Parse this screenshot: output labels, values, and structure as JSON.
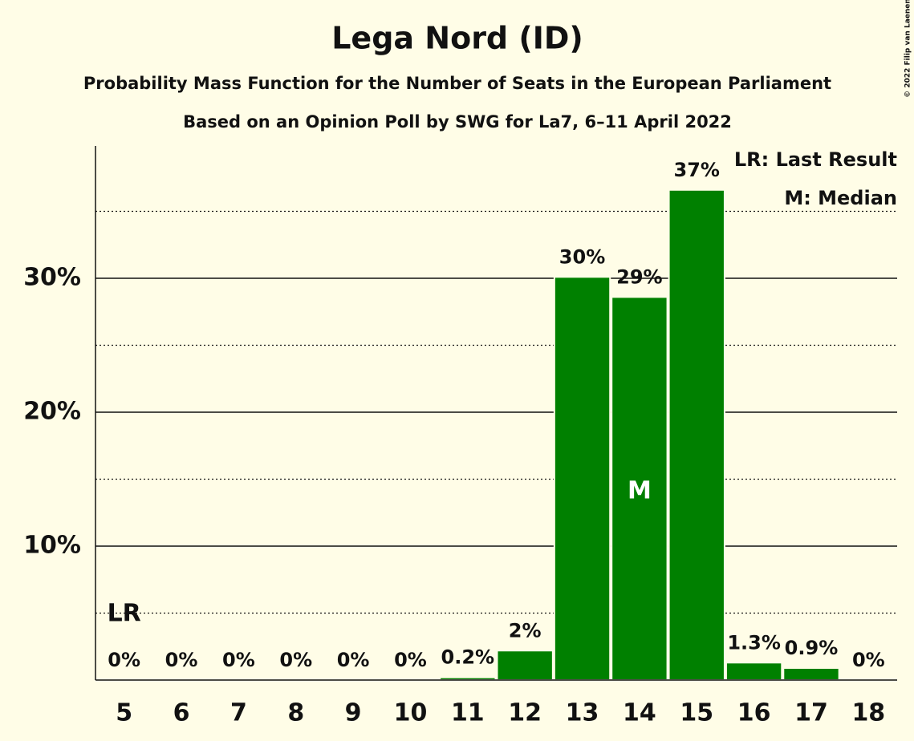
{
  "chart_data": {
    "type": "bar",
    "title": "Lega Nord (ID)",
    "subtitle": "Probability Mass Function for the Number of Seats in the European Parliament",
    "subtitle2": "Based on an Opinion Poll by SWG for La7, 6–11 April 2022",
    "copyright": "© 2022 Filip van Laenen",
    "categories": [
      "5",
      "6",
      "7",
      "8",
      "9",
      "10",
      "11",
      "12",
      "13",
      "14",
      "15",
      "16",
      "17",
      "18"
    ],
    "values": [
      0,
      0,
      0,
      0,
      0,
      0,
      0.2,
      2.2,
      30.1,
      28.6,
      36.6,
      1.3,
      0.9,
      0
    ],
    "value_labels": [
      "0%",
      "0%",
      "0%",
      "0%",
      "0%",
      "0%",
      "0.2%",
      "2%",
      "30%",
      "29%",
      "37%",
      "1.3%",
      "0.9%",
      "0%"
    ],
    "color": "#008000",
    "ylim": [
      0,
      40
    ],
    "yticks": [
      {
        "value": 10,
        "label": "10%"
      },
      {
        "value": 20,
        "label": "20%"
      },
      {
        "value": 30,
        "label": "30%"
      }
    ],
    "minor_gridlines": [
      5,
      15,
      25,
      35
    ],
    "grid": true,
    "annotations": [
      {
        "text": "LR",
        "category": "5",
        "position": "above"
      },
      {
        "text": "M",
        "category": "14",
        "position": "inside"
      }
    ],
    "legend": [
      "LR: Last Result",
      "M: Median"
    ]
  }
}
